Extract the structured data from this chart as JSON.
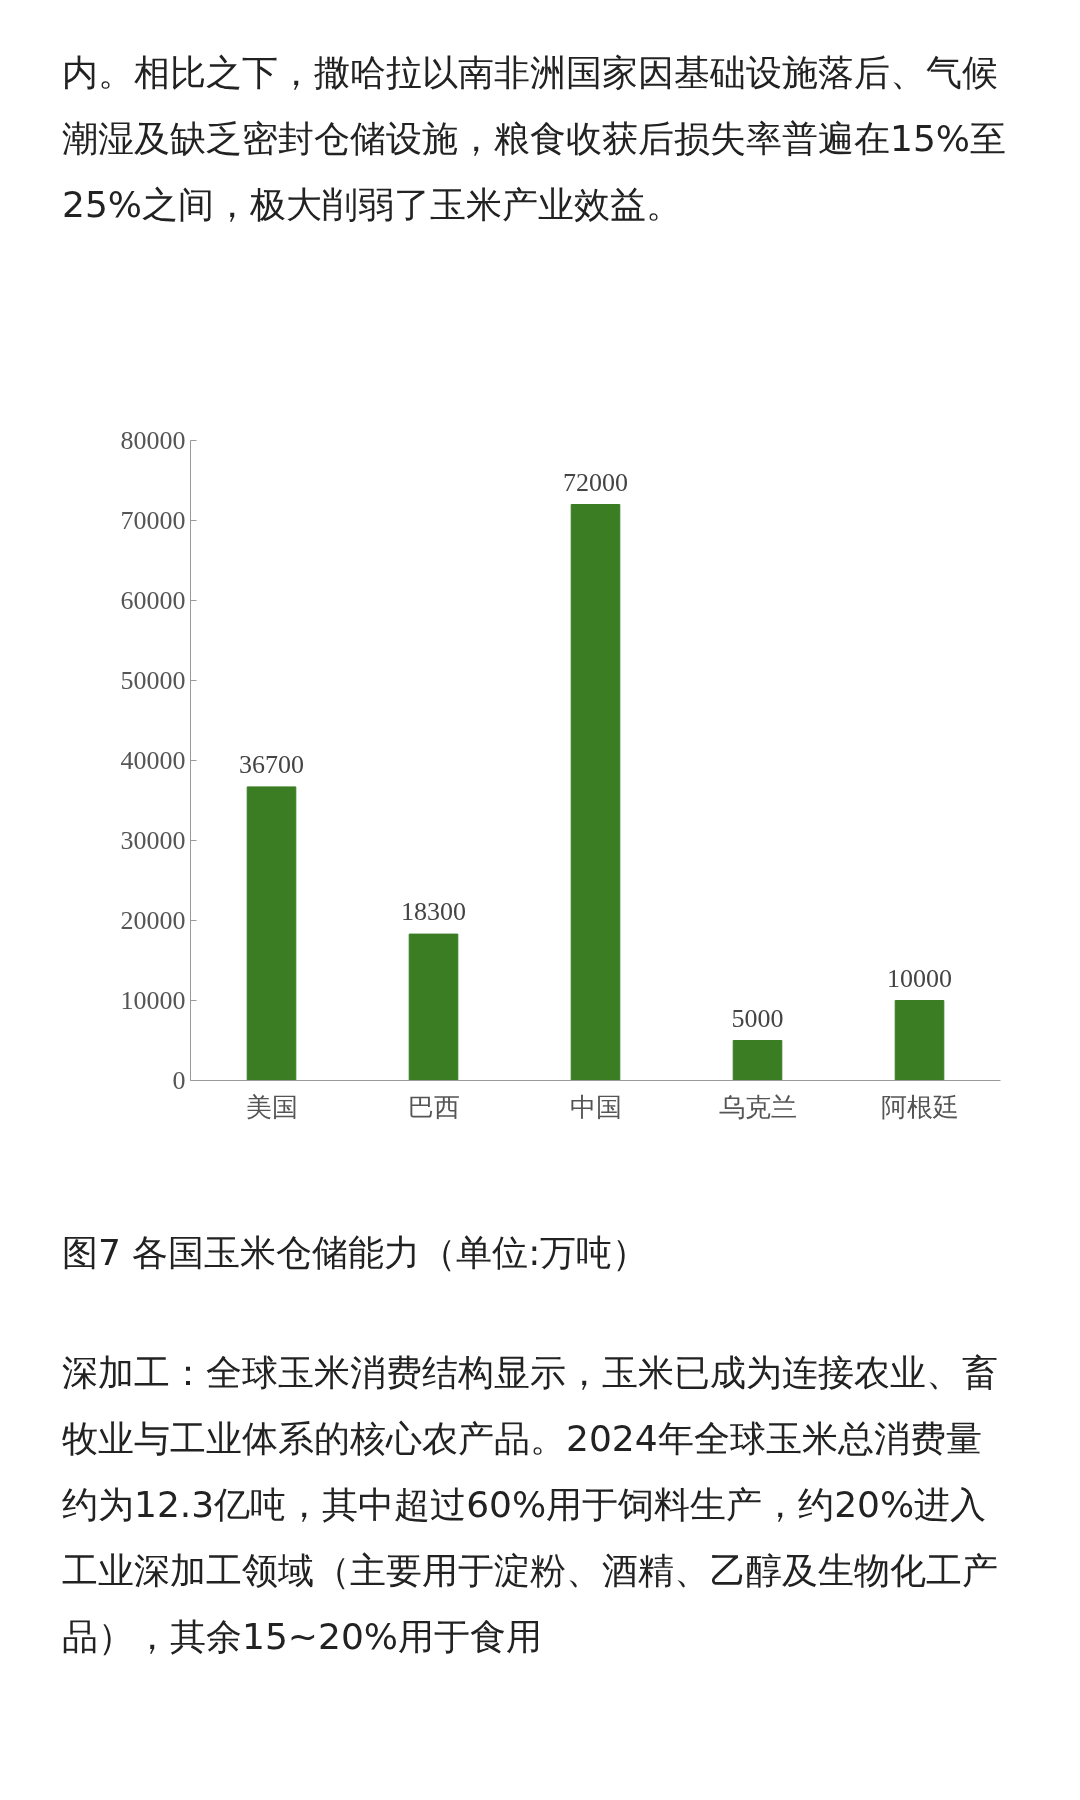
{
  "chart_data": {
    "type": "bar",
    "title": "图7 各国玉米仓储能力（单位:万吨）",
    "categories": [
      "美国",
      "巴西",
      "中国",
      "乌克兰",
      "阿根廷"
    ],
    "values": [
      36700,
      18300,
      72000,
      5000,
      10000
    ],
    "color": "#3a7d22",
    "ylim": [
      0,
      80000
    ],
    "yticks": [
      0,
      10000,
      20000,
      30000,
      40000,
      50000,
      60000,
      70000,
      80000
    ],
    "grid": false,
    "data_labels": true,
    "annotations": [
      "内。相比之下，撒哈拉以南非洲国家因基础设施落后、气候潮湿及缺乏密封仓储设施，粮食收获后损失率普遍在15%至25%之间，极大削弱了玉米产业效益。",
      "深加工：全球玉米消费结构显示，玉米已成为连接农业、畜牧业与工业体系的核心农产品。2024年全球玉米总消费量约为12.3亿吨，其中超过60%用于饲料生产，约20%进入工业深加工领域（主要用于淀粉、酒精、乙醇及生物化工产品），其余15~20%用于食用"
    ]
  }
}
